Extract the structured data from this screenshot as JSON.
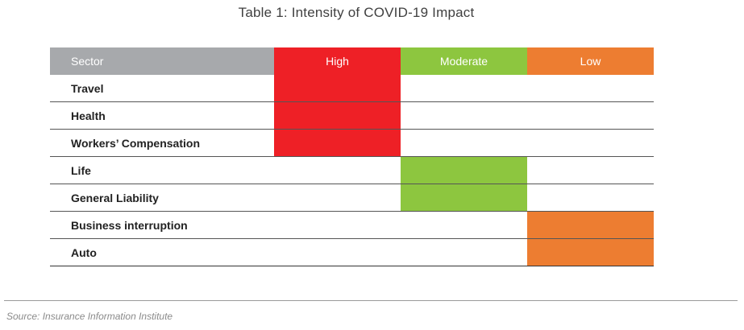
{
  "title": "Table 1: Intensity of COVID-19 Impact",
  "colors": {
    "header_sector": "#a7a9ac",
    "high": "#ee2026",
    "moderate": "#8dc63f",
    "low": "#ed7d31",
    "none": "#ffffff"
  },
  "table": {
    "headers": [
      "Sector",
      "High",
      "Moderate",
      "Low"
    ],
    "rows": [
      {
        "sector": "Travel",
        "intensity": "High"
      },
      {
        "sector": "Health",
        "intensity": "High"
      },
      {
        "sector": "Workers’ Compensation",
        "intensity": "High"
      },
      {
        "sector": "Life",
        "intensity": "Moderate"
      },
      {
        "sector": "General Liability",
        "intensity": "Moderate"
      },
      {
        "sector": "Business interruption",
        "intensity": "Low"
      },
      {
        "sector": "Auto",
        "intensity": "Low"
      }
    ]
  },
  "source": "Source: Insurance Information Institute"
}
